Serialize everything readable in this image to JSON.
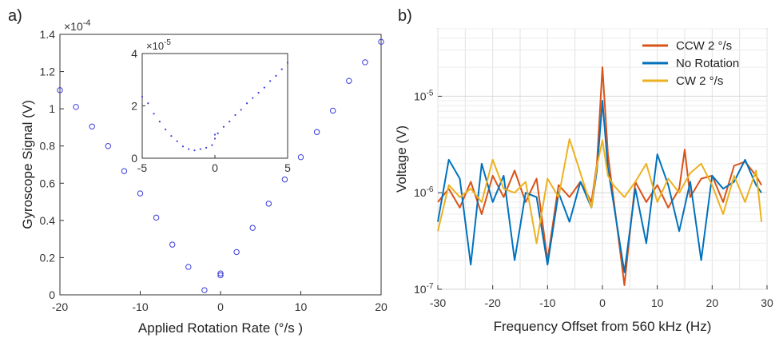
{
  "chart_data": [
    {
      "panel_label": "a)",
      "type": "scatter",
      "xlabel": "Applied Rotation Rate (°/s )",
      "ylabel": "Gyroscope Signal (V)",
      "exponent_label": "×10",
      "exponent_power": "-4",
      "xlim": [
        -20,
        20
      ],
      "ylim": [
        0,
        1.4
      ],
      "xticks": [
        -20,
        -10,
        0,
        10,
        20
      ],
      "yticks": [
        0,
        0.2,
        0.4,
        0.6,
        0.8,
        1,
        1.2,
        1.4
      ],
      "xticklabels": [
        "-20",
        "-10",
        "0",
        "10",
        "20"
      ],
      "yticklabels": [
        "0",
        "0.2",
        "0.4",
        "0.6",
        "0.8",
        "1",
        "1.2",
        "1.4"
      ],
      "series": [
        {
          "marker": "circle",
          "color": "#3b3bd9",
          "x": [
            -20,
            -18,
            -16,
            -14,
            -12,
            -10,
            -8,
            -6,
            -4,
            -2,
            0,
            0,
            2,
            4,
            6,
            8,
            10,
            12,
            14,
            16,
            18,
            20
          ],
          "y": [
            1.1,
            1.01,
            0.905,
            0.8,
            0.665,
            0.545,
            0.415,
            0.27,
            0.15,
            0.025,
            0.115,
            0.105,
            0.23,
            0.36,
            0.49,
            0.62,
            0.74,
            0.875,
            0.99,
            1.15,
            1.25,
            1.36
          ]
        }
      ],
      "inset": {
        "type": "scatter",
        "exponent_label": "×10",
        "exponent_power": "-5",
        "xlim": [
          -5,
          5
        ],
        "ylim": [
          0,
          4
        ],
        "xticks": [
          -5,
          0,
          5
        ],
        "yticks": [
          0,
          2,
          4
        ],
        "xticklabels": [
          "-5",
          "0",
          "5"
        ],
        "yticklabels": [
          "0",
          "2",
          "4"
        ],
        "color": "#3b3bd9",
        "x": [
          -5,
          -4.6,
          -4.2,
          -3.8,
          -3.4,
          -3.0,
          -2.6,
          -2.2,
          -1.8,
          -1.4,
          -1.0,
          -0.6,
          -0.2,
          0,
          0,
          0.2,
          0.6,
          1.0,
          1.4,
          1.8,
          2.2,
          2.6,
          3.0,
          3.4,
          3.8,
          4.2,
          4.6,
          5.0
        ],
        "y": [
          2.35,
          2.1,
          1.7,
          1.4,
          1.1,
          0.85,
          0.65,
          0.45,
          0.35,
          0.3,
          0.35,
          0.4,
          0.5,
          0.75,
          0.9,
          0.95,
          1.2,
          1.4,
          1.65,
          1.85,
          2.1,
          2.3,
          2.5,
          2.7,
          2.95,
          3.15,
          3.4,
          3.65
        ]
      }
    },
    {
      "panel_label": "b)",
      "type": "line",
      "xlabel": "Frequency Offset from 560 kHz (Hz)",
      "ylabel": "Voltage (V)",
      "yscale": "log",
      "xlim": [
        -30,
        30
      ],
      "ylim": [
        1e-07,
        5e-05
      ],
      "grid": true,
      "legend_position": "top-right",
      "xticks": [
        -30,
        -20,
        -10,
        0,
        10,
        20,
        30
      ],
      "xticklabels": [
        "-30",
        "-20",
        "-10",
        "0",
        "10",
        "20",
        "30"
      ],
      "yticks": [
        1e-07,
        1e-06,
        1e-05
      ],
      "yticklabel_base": "10",
      "yticklabel_powers": [
        "-7",
        "-6",
        "-5"
      ],
      "series": [
        {
          "name": "CCW 2 °/s",
          "color": "#d95319",
          "x": [
            -30,
            -28,
            -26,
            -24,
            -22,
            -20,
            -18,
            -16,
            -14,
            -12,
            -10,
            -8,
            -6,
            -4,
            -2,
            -1,
            0,
            1,
            2,
            4,
            6,
            8,
            10,
            12,
            14,
            15,
            16,
            18,
            20,
            22,
            24,
            26,
            28,
            29
          ],
          "y": [
            8e-07,
            1.1e-06,
            7e-07,
            1.3e-06,
            6e-07,
            1.5e-06,
            9e-07,
            1.7e-06,
            8e-07,
            1.4e-06,
            2e-07,
            1.2e-06,
            9e-07,
            1.3e-06,
            8e-07,
            2e-06,
            2e-05,
            2.5e-06,
            9e-07,
            1.1e-07,
            1.3e-06,
            8e-07,
            1.2e-06,
            7e-07,
            1.1e-06,
            2.8e-06,
            9e-07,
            1.4e-06,
            1.5e-06,
            8e-07,
            1.9e-06,
            2.1e-06,
            1.5e-06,
            1.2e-06
          ]
        },
        {
          "name": "No Rotation",
          "color": "#0072bd",
          "x": [
            -30,
            -28,
            -26,
            -24,
            -22,
            -20,
            -18,
            -16,
            -14,
            -12,
            -10,
            -8,
            -6,
            -4,
            -2,
            -1,
            0,
            1,
            2,
            4,
            6,
            8,
            10,
            12,
            14,
            16,
            18,
            20,
            22,
            24,
            26,
            28,
            29
          ],
          "y": [
            5e-07,
            2.2e-06,
            1.4e-06,
            1.8e-07,
            2e-06,
            8e-07,
            1.5e-06,
            2e-07,
            1e-06,
            9e-07,
            1.8e-07,
            1e-06,
            5e-07,
            1.3e-06,
            7e-07,
            1.7e-06,
            9e-06,
            1.8e-06,
            8e-07,
            1.5e-07,
            1.1e-06,
            3e-07,
            2.5e-06,
            1.2e-06,
            4e-07,
            1.3e-06,
            2e-07,
            1.5e-06,
            1.1e-06,
            1.3e-06,
            2.2e-06,
            1.2e-06,
            1e-06
          ]
        },
        {
          "name": "CW 2 °/s",
          "color": "#edb120",
          "x": [
            -30,
            -28,
            -26,
            -24,
            -22,
            -20,
            -18,
            -16,
            -14,
            -12,
            -10,
            -8,
            -6,
            -4,
            -2,
            -1,
            0,
            1,
            2,
            4,
            6,
            8,
            10,
            12,
            14,
            16,
            18,
            20,
            22,
            24,
            26,
            28,
            29
          ],
          "y": [
            4e-07,
            1.2e-06,
            9e-07,
            1.1e-06,
            8e-07,
            2.2e-06,
            1.1e-06,
            1e-06,
            1.3e-06,
            3e-07,
            1.4e-06,
            9e-07,
            3.6e-06,
            1.6e-06,
            7e-07,
            1.9e-06,
            3.5e-06,
            1.5e-06,
            1.2e-06,
            9e-07,
            1.3e-06,
            2e-06,
            8e-07,
            1.4e-06,
            1e-06,
            1.6e-06,
            2e-06,
            1.2e-06,
            6e-07,
            1.5e-06,
            8e-07,
            1.7e-06,
            5e-07
          ]
        }
      ]
    }
  ]
}
